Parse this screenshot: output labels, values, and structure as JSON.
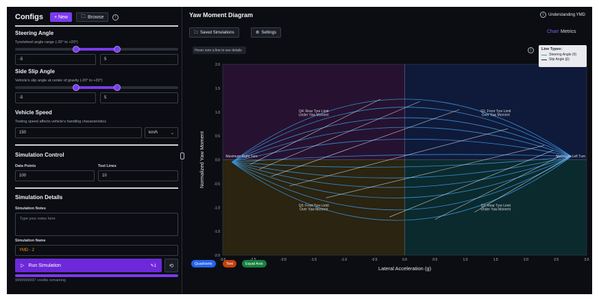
{
  "left": {
    "title": "Configs",
    "new_label": "+ New",
    "browse_label": "Browse",
    "steering": {
      "title": "Steering Angle",
      "desc": "Tyre/wheel angle range (-20° to +20°)",
      "min": "-5",
      "max": "5",
      "range_min_frac": 0.375,
      "range_max_frac": 0.625
    },
    "slip": {
      "title": "Side Slip Angle",
      "desc": "Vehicle's slip angle at center of gravity (-20° to +20°)",
      "min": "-5",
      "max": "5",
      "range_min_frac": 0.375,
      "range_max_frac": 0.625
    },
    "speed": {
      "title": "Vehicle Speed",
      "desc": "Testing speed affects vehicle's handling characteristics",
      "value": "150",
      "unit": "km/h"
    },
    "sim_control": {
      "title": "Simulation Control",
      "data_points_label": "Data Points",
      "data_points": "100",
      "test_lines_label": "Test Lines",
      "test_lines": "10"
    },
    "sim_details": {
      "title": "Simulation Details",
      "notes_label": "Simulation Notes",
      "notes_placeholder": "Type your notes here",
      "name_label": "Simulation Name",
      "name_value": "YMD - 2"
    },
    "run_label": "Run Simulation",
    "run_count": "1",
    "credits": "9999999997 credits remaining"
  },
  "right": {
    "title": "Yaw Moment Diagram",
    "understanding": "Understanding YMD",
    "saved_label": "Saved Simulations",
    "settings_label": "Settings",
    "tab_chart": "Chart",
    "tab_metrics": "Metrics",
    "hover_tip": "Hover over a line to see details",
    "legend_title": "Line Types:",
    "legend_steer": "Steering Angle (δ)",
    "legend_slip": "Slip Angle (β)",
    "pills": [
      "Quadrants",
      "Text",
      "Equal Axis"
    ]
  },
  "colors": {
    "accent": "#7c3aed",
    "steer_line": "#3b8fd6",
    "slip_line": "#e8eaf0",
    "q1": "#0f1a3a",
    "q2": "#0b2a2e",
    "q3": "#2a2410",
    "q4": "#261230",
    "pill_quadrants": "#2563eb",
    "pill_text": "#c2410c",
    "pill_equal": "#15803d"
  },
  "chart_data": {
    "type": "line",
    "title": "",
    "xlabel": "Lateral Acceleration (g)",
    "ylabel": "Normalized Yaw Moment",
    "xlim": [
      -3.0,
      3.0
    ],
    "ylim": [
      -2.0,
      2.0
    ],
    "xticks": [
      "-3.0",
      "-2.5",
      "-2.0",
      "-1.5",
      "-1.0",
      "-0.5",
      "0.0",
      "0.5",
      "1.0",
      "1.5",
      "2.0",
      "2.5",
      "3.0"
    ],
    "yticks": [
      "2.0",
      "1.5",
      "1.0",
      "0.5",
      "0.0",
      "-0.5",
      "-1.0",
      "-1.5",
      "-2.0"
    ],
    "left_node": [
      -2.85,
      -0.05
    ],
    "right_node": [
      2.75,
      0.07
    ],
    "steering_peaks": [
      1.27,
      1.1,
      0.88,
      0.68,
      0.43,
      0.1,
      -0.15,
      -0.38,
      -0.58,
      -0.8,
      -1.05,
      -1.27
    ],
    "slip_lines": [
      [
        [
          -2.55,
          -0.1
        ],
        [
          -0.4,
          1.27
        ]
      ],
      [
        [
          -2.4,
          -0.2
        ],
        [
          0.25,
          1.22
        ]
      ],
      [
        [
          -2.2,
          -0.35
        ],
        [
          0.9,
          1.05
        ]
      ],
      [
        [
          -1.9,
          -0.55
        ],
        [
          1.7,
          0.65
        ]
      ],
      [
        [
          -1.3,
          -0.8
        ],
        [
          2.3,
          0.3
        ]
      ],
      [
        [
          -0.25,
          -1.2
        ],
        [
          2.45,
          0.2
        ]
      ],
      [
        [
          0.5,
          -1.25
        ],
        [
          2.6,
          0.1
        ]
      ],
      [
        [
          1.15,
          -1.1
        ],
        [
          2.7,
          0.05
        ]
      ]
    ],
    "annotations": [
      {
        "text": "Q4: Rear Tyre Limit",
        "x": -1.5,
        "y": 1.0
      },
      {
        "text": "Under Yaw Moment",
        "x": -1.5,
        "y": 0.92
      },
      {
        "text": "Q1: Front Tyre Limit",
        "x": 1.5,
        "y": 1.0
      },
      {
        "text": "Over Yaw Moment",
        "x": 1.5,
        "y": 0.92
      },
      {
        "text": "Q3: Front Tyre Limit",
        "x": -1.5,
        "y": -0.98
      },
      {
        "text": "Over Yaw Moment",
        "x": -1.5,
        "y": -1.06
      },
      {
        "text": "Q2: Rear Tyre Limit",
        "x": 1.5,
        "y": -0.98
      },
      {
        "text": "Under Yaw Moment",
        "x": 1.5,
        "y": -1.06
      },
      {
        "text": "Maximum Right Turn",
        "x": -2.65,
        "y": 0.05
      },
      {
        "text": "Maximum Left Turn",
        "x": 2.7,
        "y": 0.05
      }
    ]
  }
}
